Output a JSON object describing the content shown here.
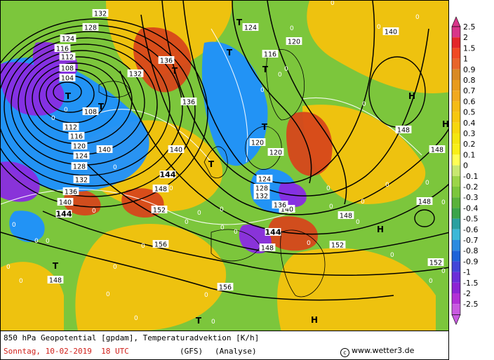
{
  "map": {
    "pressure_level": "850 hPa",
    "geopotential_labels": [
      "104",
      "108",
      "112",
      "116",
      "120",
      "124",
      "128",
      "132",
      "136",
      "140",
      "144",
      "148",
      "152",
      "156"
    ],
    "system_markers": [
      {
        "symbol": "T",
        "kind": "low"
      },
      {
        "symbol": "H",
        "kind": "high"
      }
    ],
    "field_colors": {
      "cold_advection_strong": "#8a2be2",
      "cold_advection": "#1e90ff",
      "neutral": "#7cc63c",
      "warm_advection": "#f4c20d",
      "warm_advection_strong": "#d6471b",
      "contour": "#000000",
      "coast": "#000000"
    }
  },
  "legend": {
    "ticks": [
      "2.5",
      "2",
      "1.5",
      "1",
      "0.9",
      "0.8",
      "0.7",
      "0.6",
      "0.5",
      "0.4",
      "0.3",
      "0.2",
      "0.1",
      "0",
      "-0.1",
      "-0.2",
      "-0.3",
      "-0.4",
      "-0.5",
      "-0.6",
      "-0.7",
      "-0.8",
      "-0.9",
      "-1",
      "-1.5",
      "-2",
      "-2.5"
    ],
    "colors": [
      "#d8368a",
      "#e3262b",
      "#f04a24",
      "#e8652a",
      "#d98a24",
      "#e89b1c",
      "#f1a920",
      "#f5bb16",
      "#f7c70f",
      "#f7d70d",
      "#f5e60f",
      "#f9ef18",
      "#ffff55",
      "#c8e870",
      "#9cd548",
      "#7cc63c",
      "#5ab23a",
      "#3ba44a",
      "#2aa0a0",
      "#3bb8d8",
      "#2b8be0",
      "#1e63d8",
      "#4246d8",
      "#6b2ed8",
      "#8c24d4",
      "#b230d6",
      "#c85ae0"
    ]
  },
  "footer": {
    "title": "850 hPa Geopotential [gpdam], Temperaturadvektion [K/h]",
    "date": "Sonntag, 10-02-2019  18 UTC",
    "model": "(GFS)",
    "run": "(Analyse)",
    "credit": "www.wetter3.de",
    "credit_symbol": "c"
  }
}
